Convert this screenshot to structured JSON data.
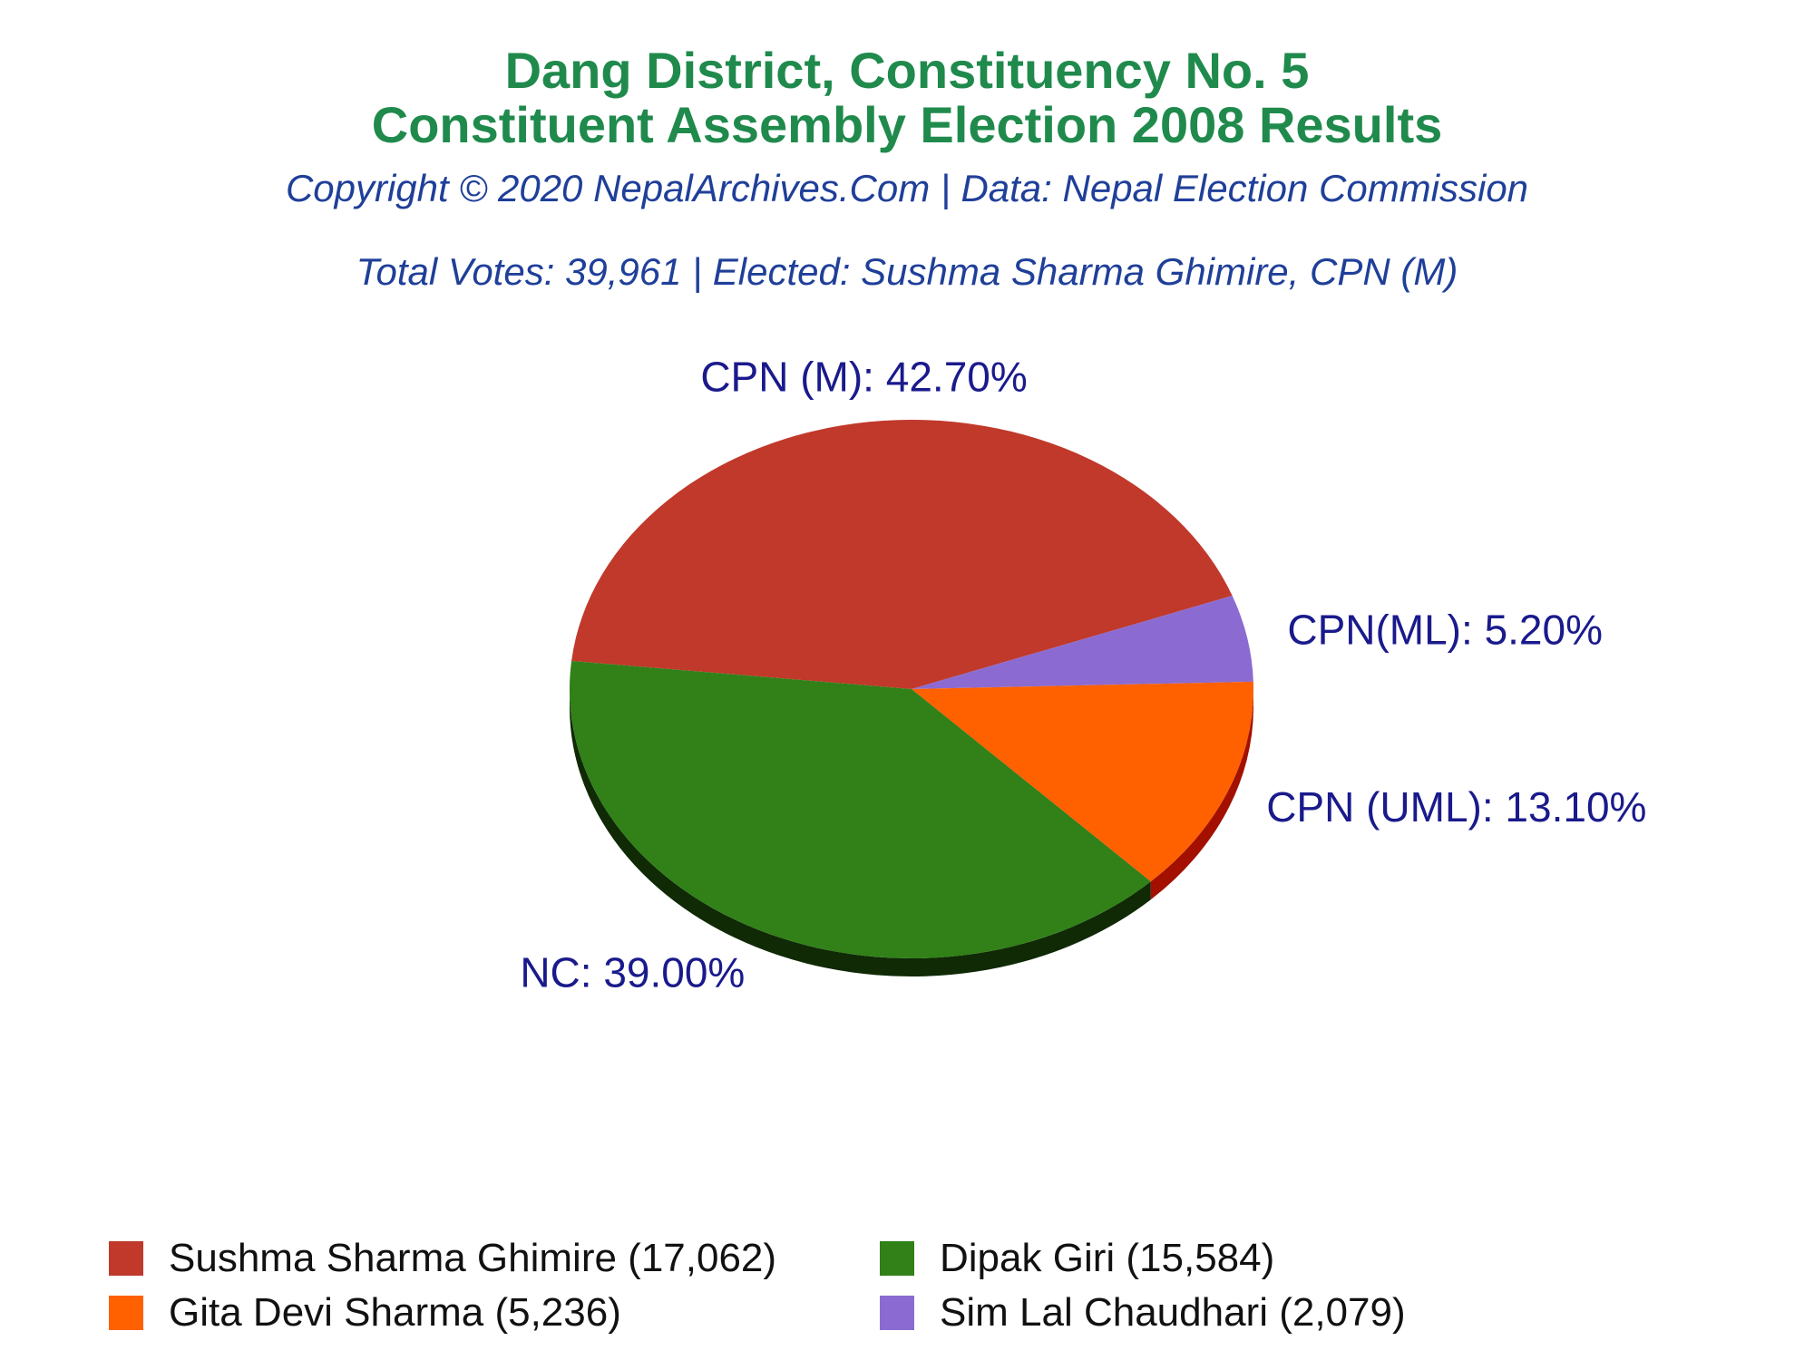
{
  "header": {
    "title_line1": "Dang District, Constituency No. 5",
    "title_line2": "Constituent Assembly Election 2008 Results",
    "copyright": "Copyright © 2020 NepalArchives.Com | Data: Nepal Election Commission",
    "summary": "Total Votes: 39,961 | Elected: Sushma Sharma Ghimire, CPN (M)"
  },
  "colors": {
    "title": "#1f8a4c",
    "subtitle": "#1f3f99",
    "label": "#1a1a8c"
  },
  "chart_data": {
    "type": "pie",
    "total_votes": 39961,
    "slices": [
      {
        "party": "CPN (M)",
        "candidate": "Sushma Sharma Ghimire",
        "votes": 17062,
        "percent": 42.7,
        "label": "CPN (M): 42.70%",
        "legend": "Sushma Sharma Ghimire (17,062)",
        "color": "#c0392b",
        "side_color": "#7a1f16"
      },
      {
        "party": "NC",
        "candidate": "Dipak Giri",
        "votes": 15584,
        "percent": 39.0,
        "label": "NC: 39.00%",
        "legend": "Dipak Giri (15,584)",
        "color": "#318018",
        "side_color": "#0f2a05"
      },
      {
        "party": "CPN (UML)",
        "candidate": "Gita Devi Sharma",
        "votes": 5236,
        "percent": 13.1,
        "label": "CPN (UML): 13.10%",
        "legend": "Gita Devi Sharma (5,236)",
        "color": "#ff6000",
        "side_color": "#a31000"
      },
      {
        "party": "CPN(ML)",
        "candidate": "Sim Lal Chaudhari",
        "votes": 2079,
        "percent": 5.2,
        "label": "CPN(ML): 5.20%",
        "legend": "Sim Lal Chaudhari (2,079)",
        "color": "#8b6bd1",
        "side_color": "#4b3290"
      }
    ],
    "legend_placement": "bottom"
  }
}
